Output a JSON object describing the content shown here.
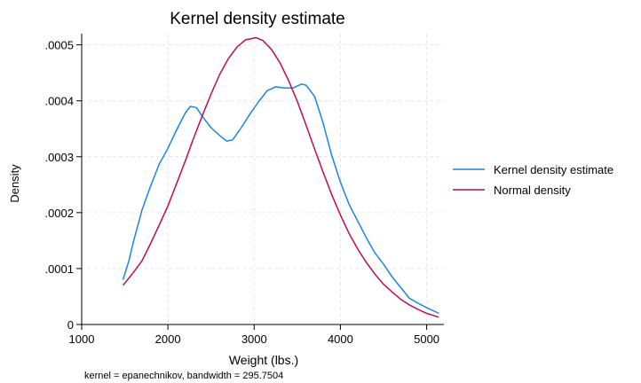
{
  "chart_data": {
    "type": "line",
    "title": "Kernel density estimate",
    "xlabel": "Weight (lbs.)",
    "ylabel": "Density",
    "note": "kernel = epanechnikov, bandwidth = 295.7504",
    "xlim": [
      1000,
      5200
    ],
    "ylim": [
      0,
      0.00052
    ],
    "x_ticks": [
      1000,
      2000,
      3000,
      4000,
      5000
    ],
    "x_tick_labels": [
      "1000",
      "2000",
      "3000",
      "4000",
      "5000"
    ],
    "y_ticks": [
      0,
      0.0001,
      0.0002,
      0.0003,
      0.0004,
      0.0005
    ],
    "y_tick_labels": [
      "0",
      ".0001",
      ".0002",
      ".0003",
      ".0004",
      ".0005"
    ],
    "grid": true,
    "legend_position": "right",
    "series": [
      {
        "name": "Kernel density estimate",
        "color": "#1a85e8",
        "x": [
          1480,
          1550,
          1600,
          1700,
          1800,
          1900,
          2000,
          2100,
          2200,
          2260,
          2330,
          2400,
          2500,
          2600,
          2680,
          2750,
          2850,
          2950,
          3050,
          3150,
          3250,
          3350,
          3450,
          3550,
          3600,
          3700,
          3800,
          3900,
          4000,
          4100,
          4200,
          4300,
          4400,
          4500,
          4600,
          4700,
          4800,
          4900,
          5000,
          5100,
          5140
        ],
        "y": [
          8e-05,
          0.000115,
          0.000148,
          0.000205,
          0.000248,
          0.000287,
          0.000315,
          0.000348,
          0.000378,
          0.00039,
          0.000388,
          0.000372,
          0.000352,
          0.000338,
          0.000328,
          0.00033,
          0.000352,
          0.000376,
          0.000398,
          0.000418,
          0.000425,
          0.000423,
          0.000423,
          0.00043,
          0.000428,
          0.000408,
          0.00036,
          0.000302,
          0.000255,
          0.000215,
          0.000185,
          0.000155,
          0.000128,
          0.000108,
          8.5e-05,
          6.6e-05,
          4.7e-05,
          3.8e-05,
          3e-05,
          2.3e-05,
          2e-05
        ]
      },
      {
        "name": "Normal density",
        "color": "#c10b4f",
        "x": [
          1480,
          1600,
          1700,
          1800,
          1900,
          2000,
          2100,
          2200,
          2300,
          2400,
          2500,
          2600,
          2700,
          2800,
          2900,
          3000,
          3020,
          3100,
          3200,
          3300,
          3400,
          3500,
          3600,
          3700,
          3800,
          3900,
          4000,
          4100,
          4200,
          4300,
          4400,
          4500,
          4600,
          4700,
          4800,
          4900,
          5000,
          5140
        ],
        "y": [
          7e-05,
          9.3e-05,
          0.000114,
          0.000145,
          0.000178,
          0.000212,
          0.000252,
          0.000292,
          0.000334,
          0.000374,
          0.000412,
          0.000447,
          0.000475,
          0.000496,
          0.000509,
          0.000512,
          0.000513,
          0.000508,
          0.000492,
          0.000468,
          0.000436,
          0.000399,
          0.000357,
          0.000314,
          0.000272,
          0.000232,
          0.000196,
          0.000163,
          0.000135,
          0.000111,
          9e-05,
          7.2e-05,
          5.8e-05,
          4.5e-05,
          3.5e-05,
          2.7e-05,
          2e-05,
          1.3e-05
        ]
      }
    ]
  }
}
